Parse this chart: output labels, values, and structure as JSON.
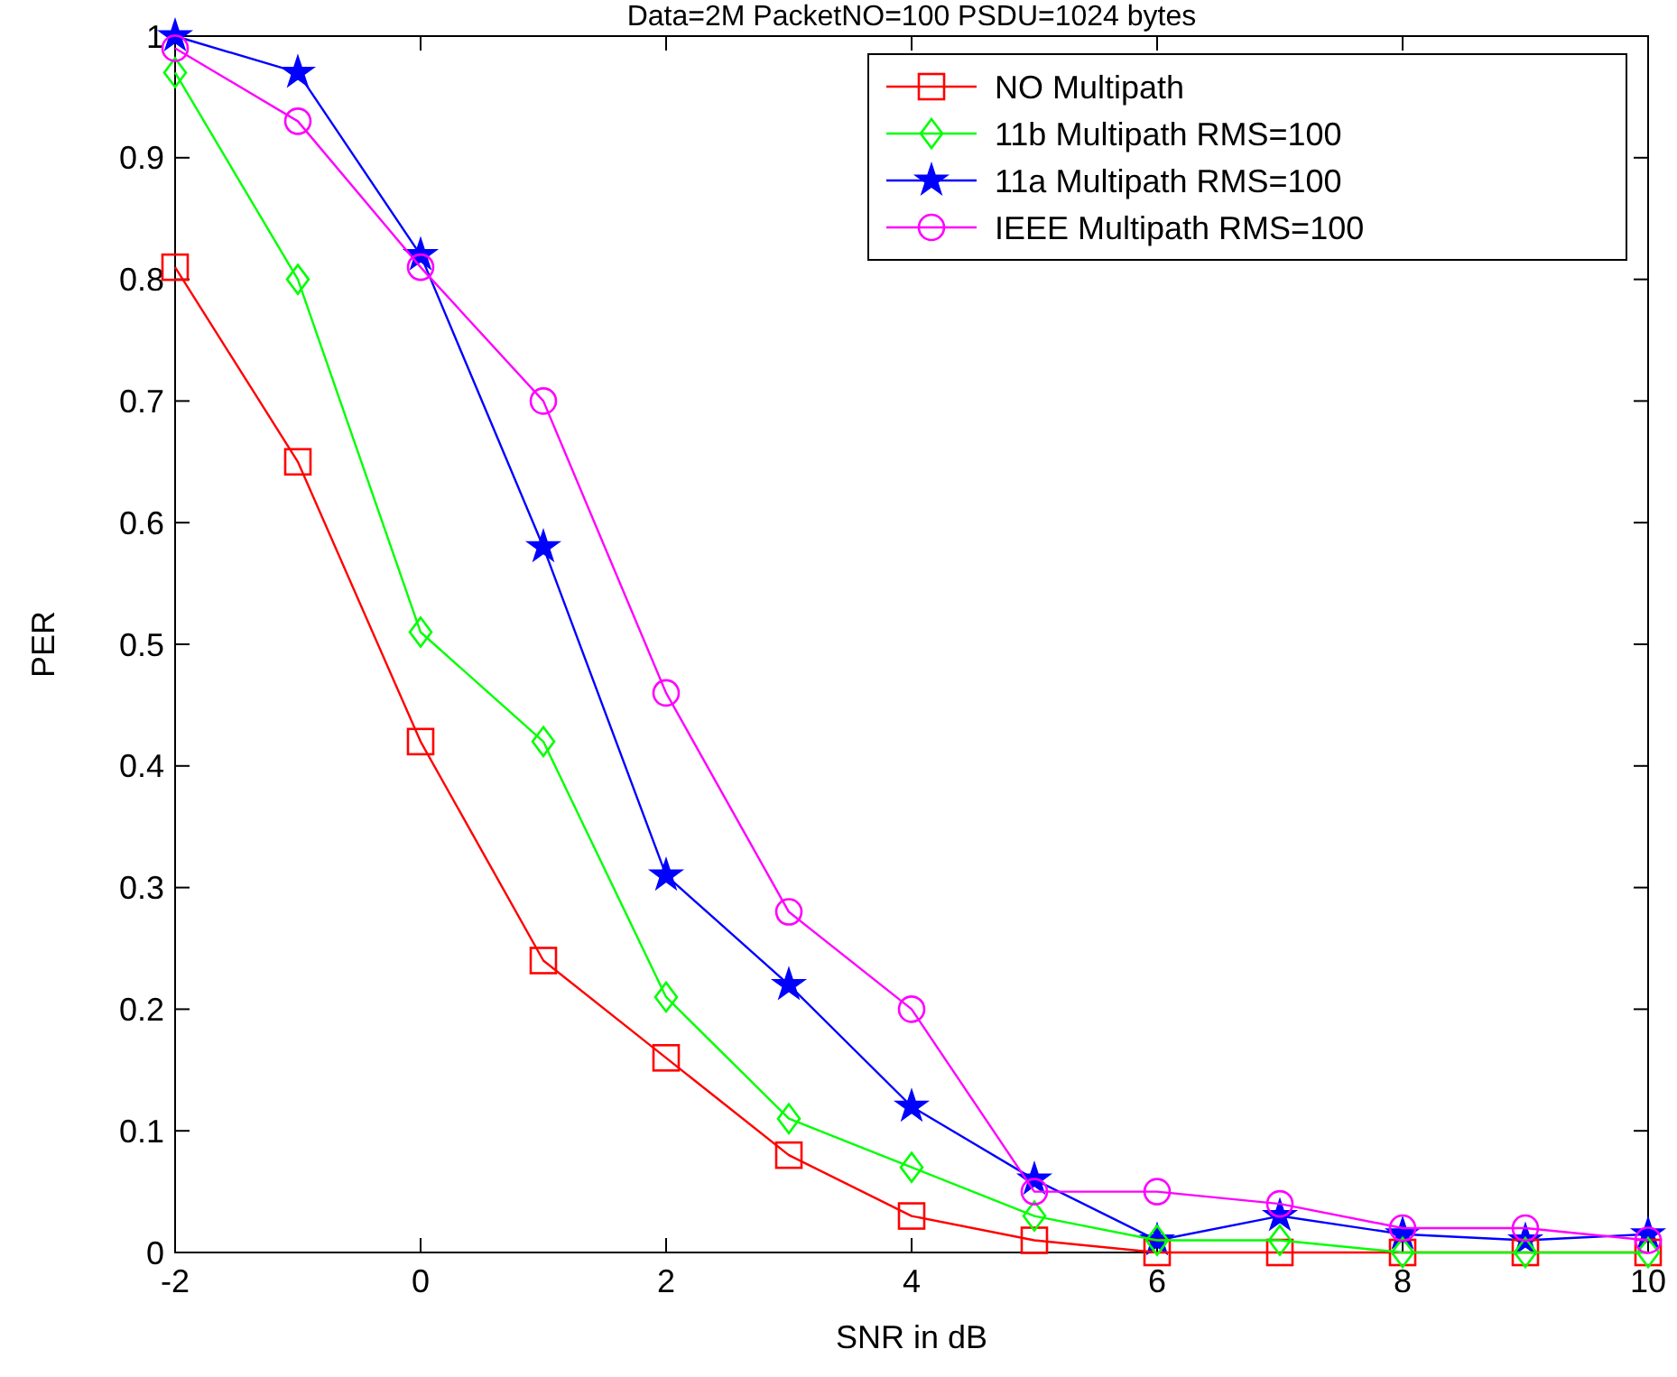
{
  "chart_data": {
    "type": "line",
    "title": "Data=2M PacketNO=100 PSDU=1024 bytes",
    "xlabel": "SNR in dB",
    "ylabel": "PER",
    "x": [
      -2,
      -1,
      0,
      1,
      2,
      3,
      4,
      5,
      6,
      7,
      8,
      9,
      10
    ],
    "series": [
      {
        "name": "NO Multipath",
        "color": "#ff0000",
        "marker": "square",
        "values": [
          0.81,
          0.65,
          0.42,
          0.24,
          0.16,
          0.08,
          0.03,
          0.01,
          0,
          0,
          0,
          0,
          0
        ]
      },
      {
        "name": "11b Multipath RMS=100",
        "color": "#00ff00",
        "marker": "diamond",
        "values": [
          0.97,
          0.8,
          0.51,
          0.42,
          0.21,
          0.11,
          0.07,
          0.03,
          0.01,
          0.01,
          0,
          0,
          0
        ]
      },
      {
        "name": "11a Multipath RMS=100",
        "color": "#0000ff",
        "marker": "star",
        "values": [
          1.0,
          0.97,
          0.82,
          0.58,
          0.31,
          0.22,
          0.12,
          0.06,
          0.01,
          0.03,
          0.015,
          0.01,
          0.015
        ]
      },
      {
        "name": "IEEE Multipath RMS=100",
        "color": "#ff00ff",
        "marker": "circle",
        "values": [
          0.99,
          0.93,
          0.81,
          0.7,
          0.46,
          0.28,
          0.2,
          0.05,
          0.05,
          0.04,
          0.02,
          0.02,
          0.01
        ]
      }
    ],
    "xlim": [
      -2,
      10
    ],
    "xticks": [
      -2,
      0,
      2,
      4,
      6,
      8,
      10
    ],
    "ylim": [
      0,
      1
    ],
    "yticks": [
      0,
      0.1,
      0.2,
      0.3,
      0.4,
      0.5,
      0.6,
      0.7,
      0.8,
      0.9,
      1
    ],
    "grid": false,
    "legend": "top right"
  }
}
